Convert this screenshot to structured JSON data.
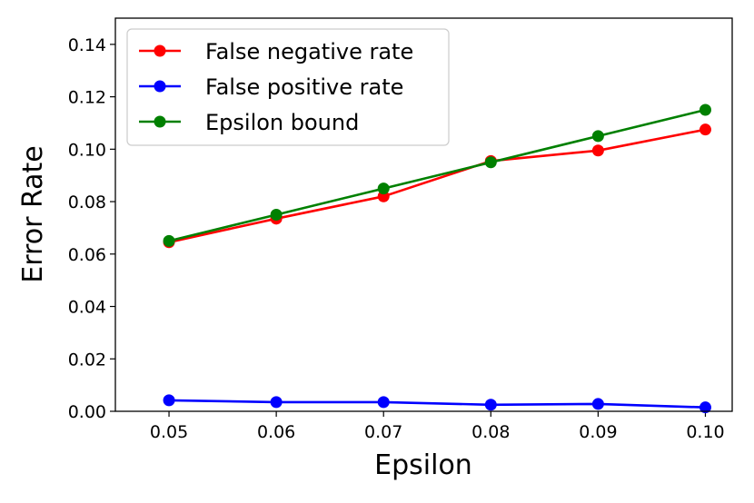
{
  "chart_data": {
    "type": "line",
    "xlabel": "Epsilon",
    "ylabel": "Error Rate",
    "xlim": [
      0.045,
      0.1025
    ],
    "ylim": [
      0.0,
      0.15
    ],
    "x_ticks": [
      "0.05",
      "0.06",
      "0.07",
      "0.08",
      "0.09",
      "0.10"
    ],
    "x_tick_values": [
      0.05,
      0.06,
      0.07,
      0.08,
      0.09,
      0.1
    ],
    "y_ticks": [
      "0.00",
      "0.02",
      "0.04",
      "0.06",
      "0.08",
      "0.10",
      "0.12",
      "0.14"
    ],
    "y_tick_values": [
      0.0,
      0.02,
      0.04,
      0.06,
      0.08,
      0.1,
      0.12,
      0.14
    ],
    "grid": false,
    "legend_position": "top-left",
    "x": [
      0.05,
      0.06,
      0.07,
      0.08,
      0.09,
      0.1
    ],
    "series": [
      {
        "name": "False negative rate",
        "color": "#ff0000",
        "values": [
          0.0645,
          0.0735,
          0.082,
          0.0955,
          0.0995,
          0.1075
        ]
      },
      {
        "name": "False positive rate",
        "color": "#0000ff",
        "values": [
          0.0042,
          0.0035,
          0.0035,
          0.0025,
          0.0028,
          0.0015
        ]
      },
      {
        "name": "Epsilon bound",
        "color": "#008000",
        "values": [
          0.065,
          0.075,
          0.085,
          0.095,
          0.105,
          0.115
        ]
      }
    ]
  }
}
